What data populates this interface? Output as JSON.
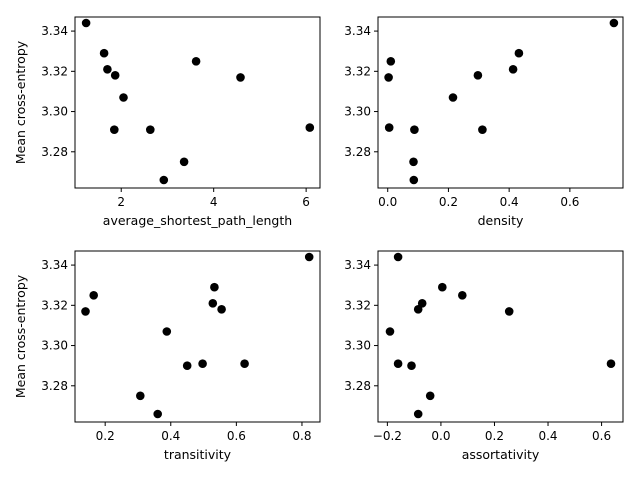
{
  "chart_data": [
    {
      "type": "scatter",
      "xlabel": "average_shortest_path_length",
      "ylabel": "Mean cross-entropy",
      "xlim": [
        1.0,
        6.3
      ],
      "ylim": [
        3.262,
        3.347
      ],
      "xticks": [
        2,
        4,
        6
      ],
      "yticks": [
        3.28,
        3.3,
        3.32,
        3.34
      ],
      "x": [
        1.24,
        1.63,
        1.7,
        1.87,
        2.05,
        1.85,
        2.63,
        3.62,
        4.58,
        3.36,
        2.92,
        6.08
      ],
      "y": [
        3.344,
        3.329,
        3.321,
        3.318,
        3.307,
        3.291,
        3.291,
        3.325,
        3.317,
        3.275,
        3.266,
        3.292
      ]
    },
    {
      "type": "scatter",
      "xlabel": "density",
      "ylabel": "",
      "xlim": [
        -0.032,
        0.775
      ],
      "ylim": [
        3.262,
        3.347
      ],
      "xticks": [
        0.0,
        0.2,
        0.4,
        0.6
      ],
      "yticks": [
        3.28,
        3.3,
        3.32,
        3.34
      ],
      "x": [
        0.745,
        0.432,
        0.413,
        0.297,
        0.215,
        0.312,
        0.088,
        0.085,
        0.086,
        0.005,
        0.01,
        0.003
      ],
      "y": [
        3.344,
        3.329,
        3.321,
        3.318,
        3.307,
        3.291,
        3.291,
        3.275,
        3.266,
        3.292,
        3.325,
        3.317
      ]
    },
    {
      "type": "scatter",
      "xlabel": "transitivity",
      "ylabel": "Mean cross-entropy",
      "xlim": [
        0.108,
        0.855
      ],
      "ylim": [
        3.262,
        3.347
      ],
      "xticks": [
        0.2,
        0.4,
        0.6,
        0.8
      ],
      "yticks": [
        3.28,
        3.3,
        3.32,
        3.34
      ],
      "x": [
        0.822,
        0.533,
        0.528,
        0.555,
        0.388,
        0.497,
        0.45,
        0.625,
        0.165,
        0.14,
        0.307,
        0.36
      ],
      "y": [
        3.344,
        3.329,
        3.321,
        3.318,
        3.307,
        3.291,
        3.29,
        3.291,
        3.325,
        3.317,
        3.275,
        3.266
      ]
    },
    {
      "type": "scatter",
      "xlabel": "assortativity",
      "ylabel": "",
      "xlim": [
        -0.235,
        0.68
      ],
      "ylim": [
        3.262,
        3.347
      ],
      "xticks": [
        -0.2,
        0.0,
        0.2,
        0.4,
        0.6
      ],
      "yticks": [
        3.28,
        3.3,
        3.32,
        3.34
      ],
      "x": [
        -0.16,
        0.005,
        -0.07,
        -0.085,
        -0.19,
        -0.16,
        -0.11,
        0.08,
        0.255,
        -0.04,
        -0.085,
        0.635
      ],
      "y": [
        3.344,
        3.329,
        3.321,
        3.318,
        3.307,
        3.291,
        3.29,
        3.325,
        3.317,
        3.275,
        3.266,
        3.291
      ]
    }
  ]
}
